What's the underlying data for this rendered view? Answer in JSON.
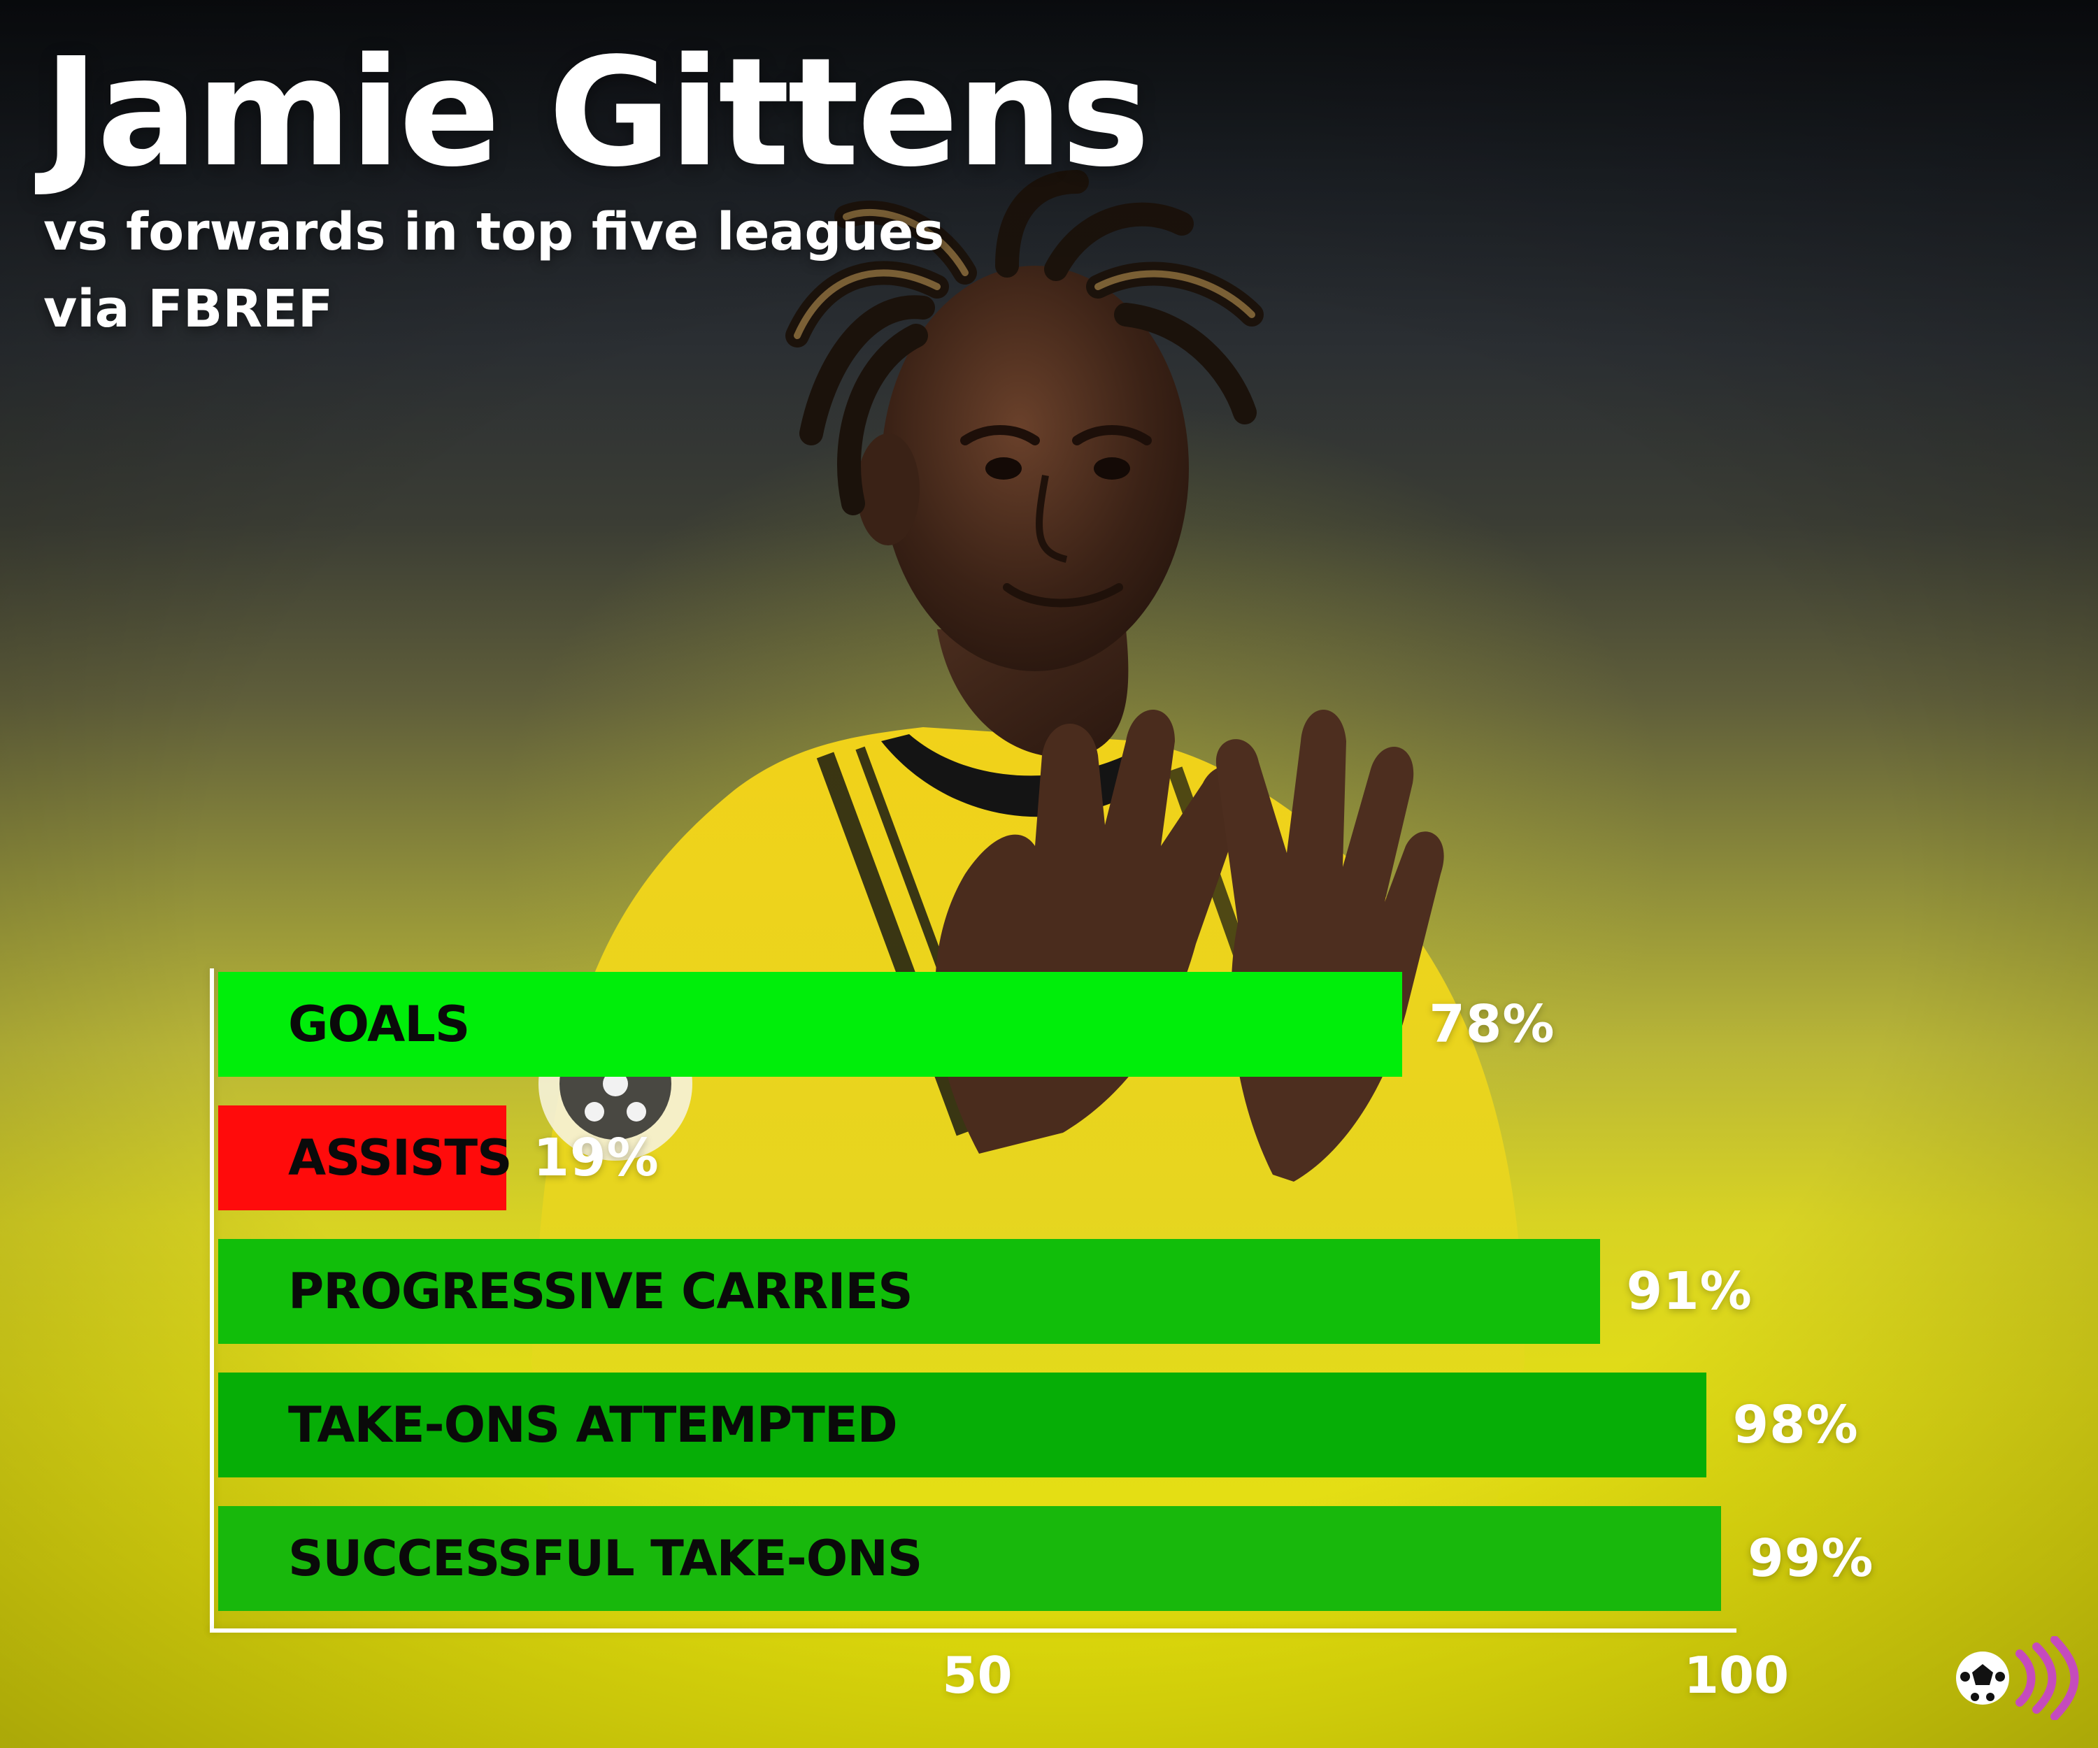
{
  "header": {
    "title": "Jamie Gittens",
    "subtitle": "vs forwards in top five leagues",
    "source": "via FBREF"
  },
  "colors": {
    "bright_green": "#00EE0A",
    "red": "#FF0B0B",
    "green": "#11BE0A",
    "dark_green": "#06AE06",
    "mid_green": "#18B80C",
    "text_dark": "#0A0A0A",
    "text_light": "#FFFFFF"
  },
  "chart_data": {
    "type": "bar",
    "orientation": "horizontal",
    "categories": [
      "GOALS",
      "ASSISTS",
      "PROGRESSIVE CARRIES",
      "TAKE-ONS ATTEMPTED",
      "SUCCESSFUL TAKE-ONS"
    ],
    "values": [
      78,
      19,
      91,
      98,
      99
    ],
    "value_labels": [
      "78%",
      "19%",
      "91%",
      "98%",
      "99%"
    ],
    "bar_colors": [
      "#00EE0A",
      "#FF0B0B",
      "#11BE0A",
      "#06AE06",
      "#18B80C"
    ],
    "xlim": [
      0,
      100
    ],
    "xticks": [
      50,
      100
    ],
    "xtick_labels": [
      "50",
      "100"
    ],
    "title": "Jamie Gittens",
    "subtitle": "vs forwards in top five leagues",
    "grid": false
  },
  "logo": {
    "icon": "football-broadcast-icon"
  }
}
